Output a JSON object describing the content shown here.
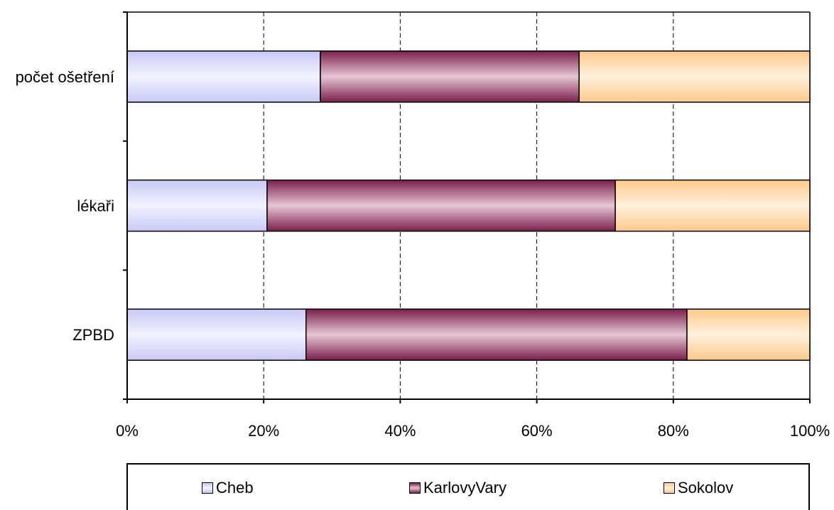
{
  "colors": {
    "Cheb": "#dcdcfa",
    "KarlovyVary": "#a85a7e",
    "Sokolov": "#ffd8a8"
  },
  "chart_data": {
    "type": "bar",
    "orientation": "horizontal",
    "stacked": "percent",
    "categories": [
      "počet ošetření",
      "lékaři",
      "ZPBD"
    ],
    "series": [
      {
        "name": "Cheb",
        "values": [
          28.3,
          20.5,
          26.2
        ]
      },
      {
        "name": "KarlovyVary",
        "values": [
          37.9,
          51.0,
          55.8
        ]
      },
      {
        "name": "Sokolov",
        "values": [
          33.8,
          28.5,
          18.0
        ]
      }
    ],
    "xticks": [
      "0%",
      "20%",
      "40%",
      "60%",
      "80%",
      "100%"
    ],
    "xlim": [
      0,
      100
    ],
    "grid": "vertical dashed",
    "legend_position": "bottom"
  }
}
